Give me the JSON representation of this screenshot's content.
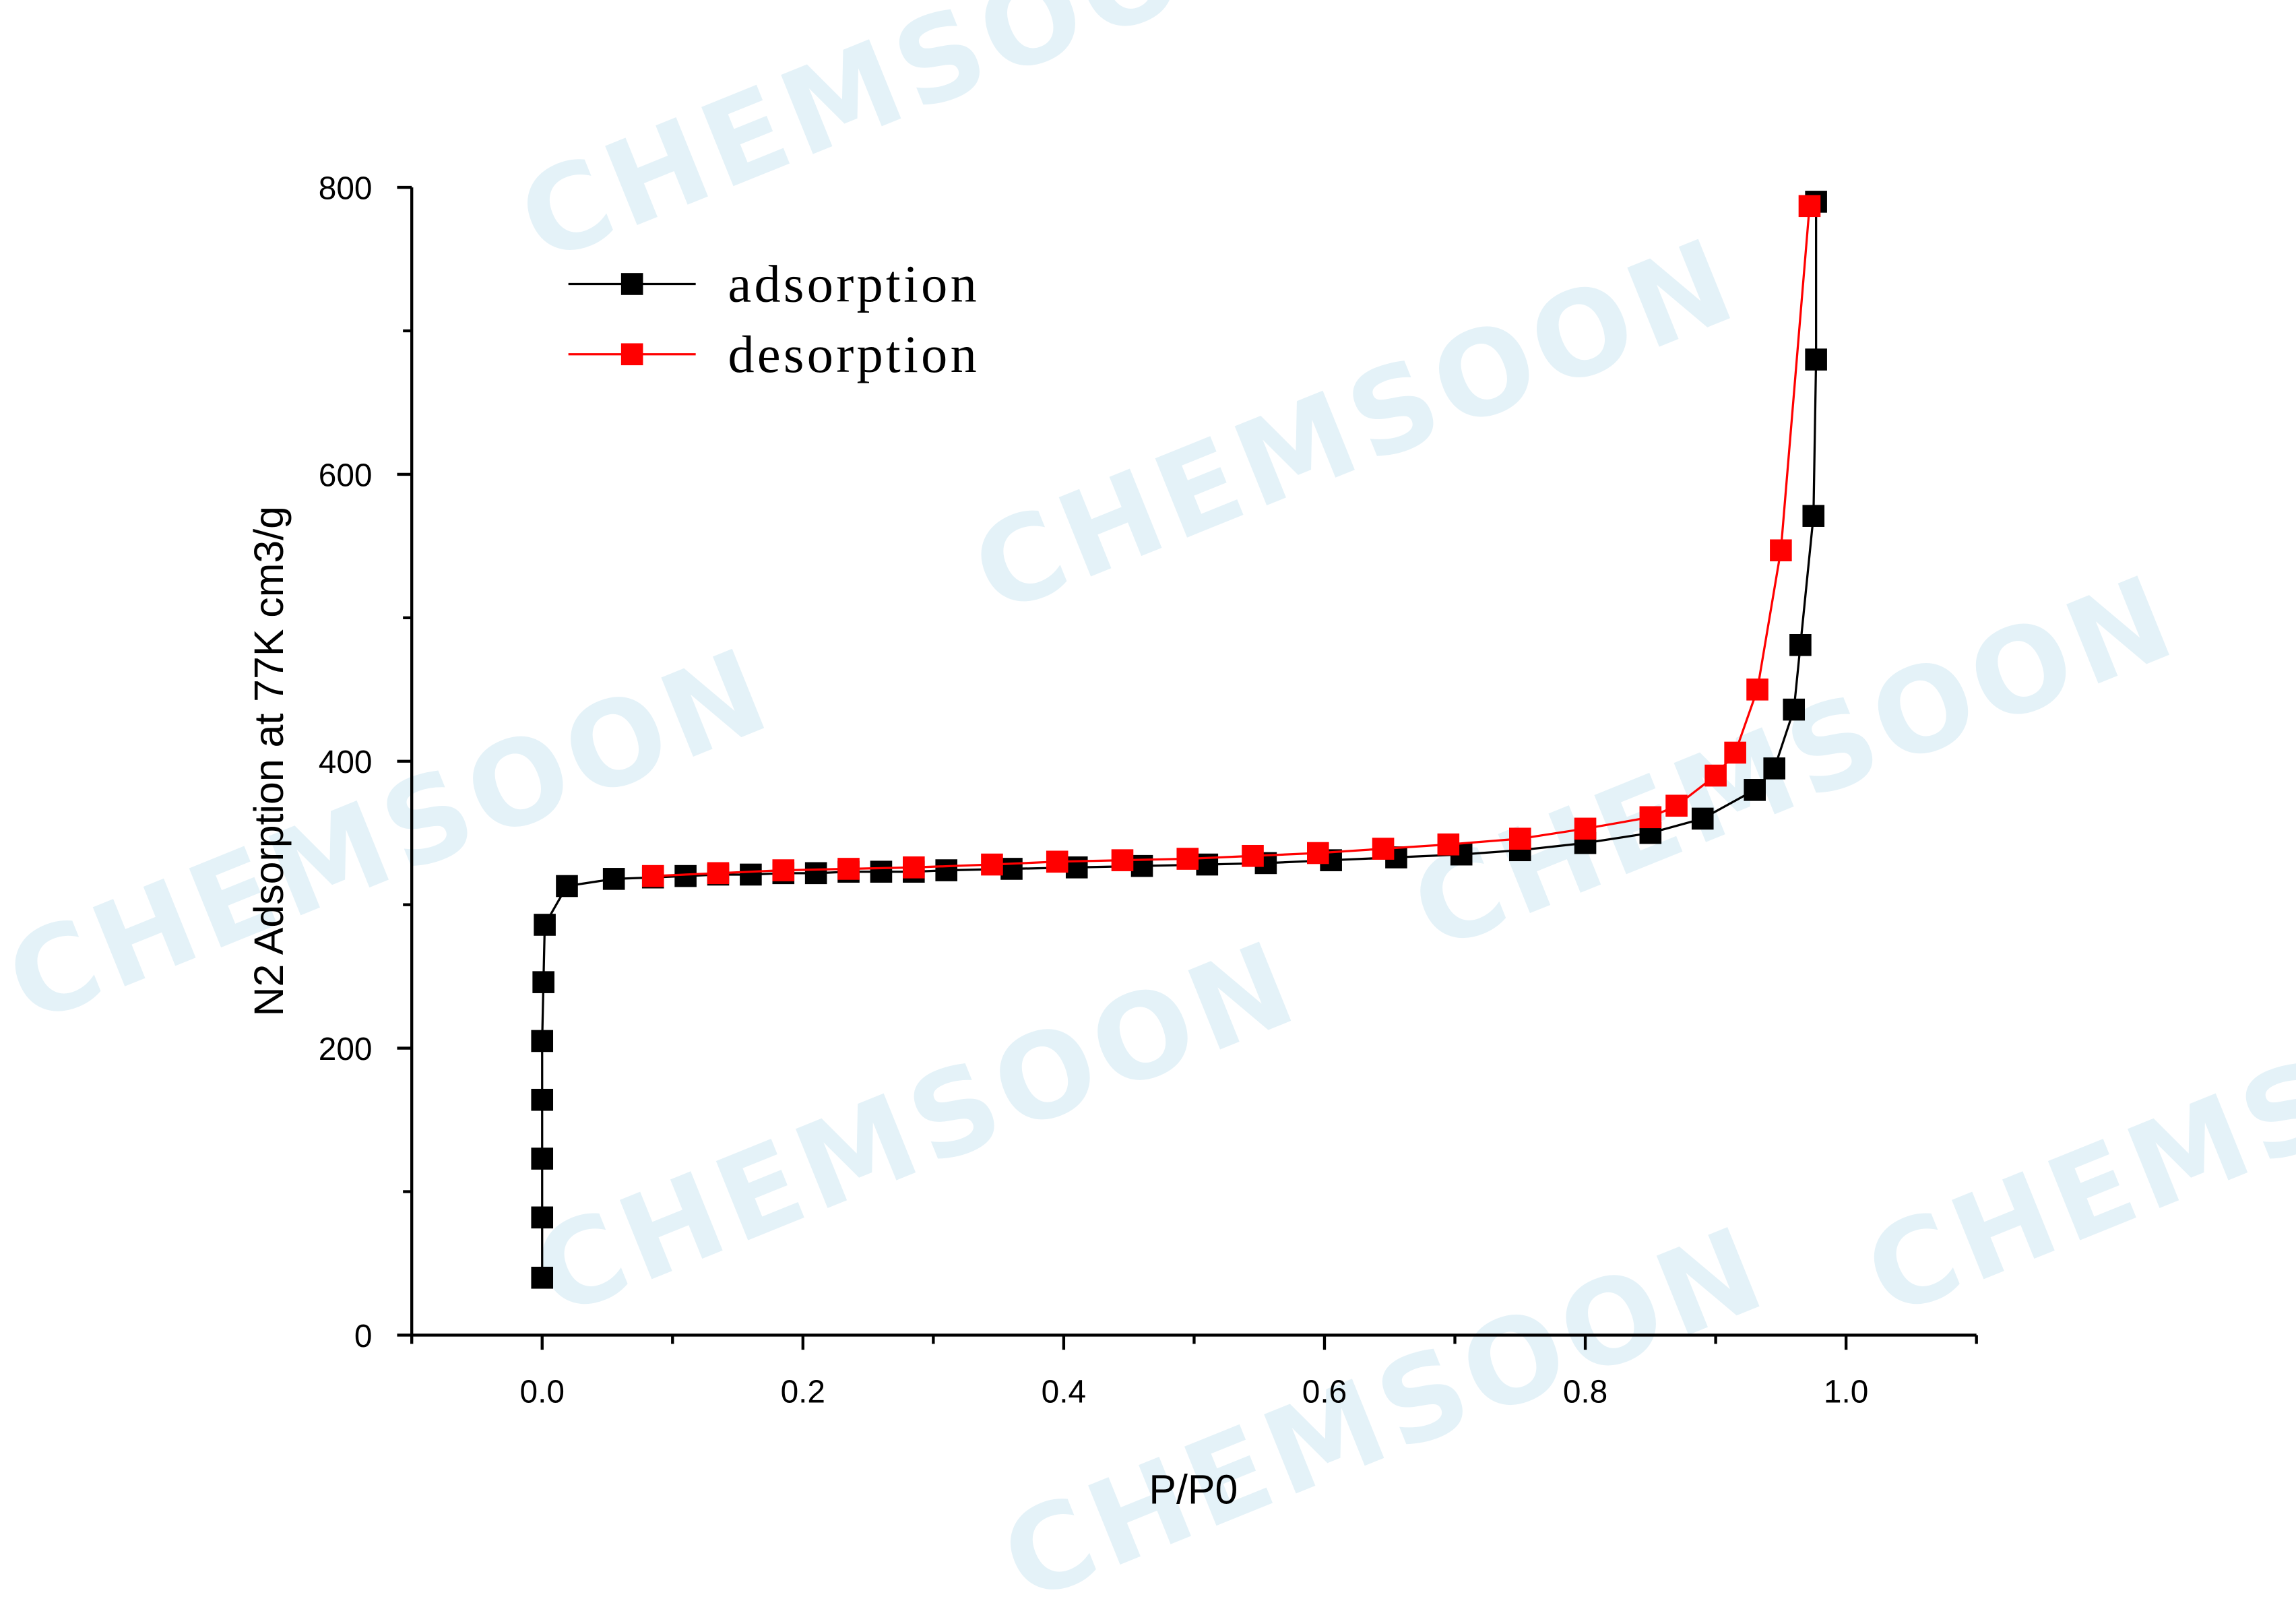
{
  "chart_data": {
    "type": "line",
    "watermark": "CHEMSOON",
    "xlabel": "P/P0",
    "ylabel": "N2 Adsorption at 77K  cm3/g",
    "xlim": [
      -0.1,
      1.1
    ],
    "ylim": [
      0,
      800
    ],
    "xticks": [
      {
        "value": 0,
        "label": "0.0"
      },
      0.2,
      0.4,
      0.6,
      0.8,
      {
        "value": 1,
        "label": "1.0"
      }
    ],
    "xminorticks": [
      -0.1,
      0.1,
      0.3,
      0.5,
      0.7,
      0.9,
      1.1
    ],
    "yticks": [
      0,
      200,
      400,
      600,
      800
    ],
    "yminorticks": [
      100,
      300,
      500,
      700
    ],
    "legend": "upper left",
    "series": [
      {
        "name": "adsorption",
        "color": "#000000",
        "x": [
          0.0,
          0.0,
          0.0,
          0.0,
          0.0,
          0.001,
          0.002,
          0.019,
          0.055,
          0.085,
          0.11,
          0.135,
          0.16,
          0.185,
          0.21,
          0.235,
          0.26,
          0.285,
          0.31,
          0.36,
          0.41,
          0.46,
          0.51,
          0.555,
          0.605,
          0.655,
          0.705,
          0.75,
          0.8,
          0.85,
          0.89,
          0.93,
          0.945,
          0.96,
          0.965,
          0.975,
          0.977,
          0.977
        ],
        "values": [
          40,
          82,
          123,
          164,
          205,
          246,
          286,
          313,
          318,
          319,
          320,
          321,
          321,
          322,
          322,
          323,
          323,
          323,
          324,
          325,
          326,
          327,
          328,
          329,
          331,
          333,
          335,
          338,
          343,
          350,
          360,
          380,
          395,
          436,
          481,
          571,
          680,
          790
        ]
      },
      {
        "name": "desorption",
        "color": "#ff0000",
        "x": [
          0.085,
          0.135,
          0.185,
          0.235,
          0.285,
          0.345,
          0.395,
          0.445,
          0.495,
          0.545,
          0.595,
          0.645,
          0.695,
          0.75,
          0.8,
          0.85,
          0.87,
          0.9,
          0.915,
          0.932,
          0.95,
          0.972
        ],
        "values": [
          320,
          322,
          324,
          325,
          326,
          328,
          330,
          331,
          332,
          334,
          336,
          339,
          342,
          346,
          353,
          361,
          369,
          390,
          406,
          450,
          547,
          787
        ]
      }
    ]
  }
}
